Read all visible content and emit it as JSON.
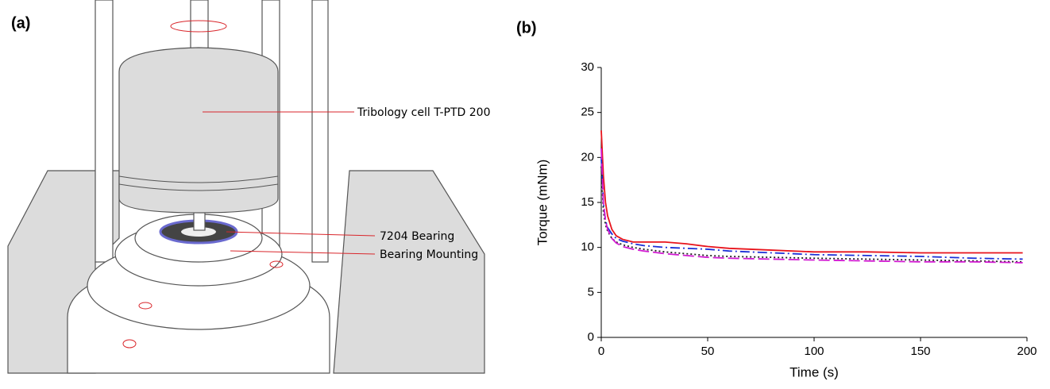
{
  "diagram": {
    "label": "(a)",
    "callouts": [
      "Tribology cell T-PTD 200",
      "7204 Bearing",
      "Bearing Mounting"
    ]
  },
  "chart_data": {
    "type": "line",
    "panel_label": "(b)",
    "x_label": "Time (s)",
    "y_label": "Torque (mNm)",
    "x": [
      0,
      1,
      2,
      3,
      5,
      7,
      10,
      15,
      20,
      30,
      40,
      50,
      60,
      80,
      100,
      125,
      150,
      175,
      198
    ],
    "series": [
      {
        "color": "#e8141c",
        "dash": "none",
        "values": [
          23,
          18,
          15,
          13.5,
          12,
          11.3,
          10.9,
          10.6,
          10.6,
          10.6,
          10.4,
          10.1,
          9.9,
          9.7,
          9.5,
          9.5,
          9.4,
          9.4,
          9.4
        ]
      },
      {
        "color": "#1c2fd6",
        "dash": "12 4 2 4",
        "values": [
          20,
          15,
          13,
          12.2,
          11.5,
          11,
          10.7,
          10.4,
          10.2,
          10,
          9.9,
          9.8,
          9.6,
          9.4,
          9.2,
          9.1,
          9,
          8.8,
          8.7
        ]
      },
      {
        "color": "#222222",
        "dash": "2 3",
        "values": [
          19,
          14,
          12.5,
          11.8,
          11,
          10.6,
          10.3,
          10,
          9.8,
          9.5,
          9.3,
          9.1,
          9,
          8.9,
          8.8,
          8.7,
          8.6,
          8.5,
          8.4
        ]
      },
      {
        "color": "#d21bd2",
        "dash": "14 5",
        "values": [
          21,
          15,
          13,
          12,
          11,
          10.5,
          10.1,
          9.8,
          9.6,
          9.3,
          9.1,
          8.9,
          8.8,
          8.7,
          8.6,
          8.5,
          8.4,
          8.4,
          8.3
        ]
      }
    ],
    "xlim": [
      0,
      200
    ],
    "xticks": [
      0,
      50,
      100,
      150,
      200
    ],
    "ylim": [
      0,
      30
    ],
    "yticks": [
      0,
      5,
      10,
      15,
      20,
      25,
      30
    ]
  }
}
